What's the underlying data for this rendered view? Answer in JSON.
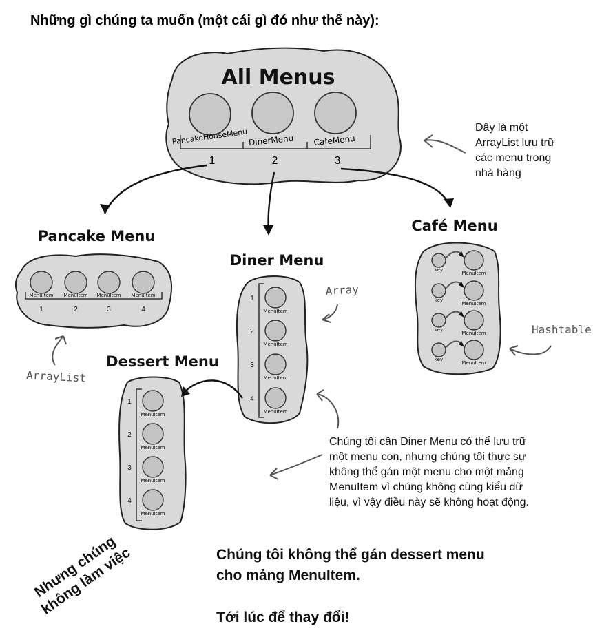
{
  "heading": "Những gì chúng ta muốn (một cái gì đó như thế này):",
  "all_menus": {
    "title": "All Menus",
    "items": [
      "PancakeHouseMenu",
      "DinerMenu",
      "CafeMenu"
    ],
    "indices": [
      "1",
      "2",
      "3"
    ]
  },
  "all_menus_note": [
    "Đây là một",
    "ArrayList lưu trữ",
    "các menu trong",
    "nhà hàng"
  ],
  "pancake": {
    "title": "Pancake Menu",
    "item_label": "MenuItem",
    "indices": [
      "1",
      "2",
      "3",
      "4"
    ]
  },
  "diner": {
    "title": "Diner Menu",
    "item_label": "MenuItem",
    "indices": [
      "1",
      "2",
      "3",
      "4"
    ]
  },
  "cafe": {
    "title": "Café Menu",
    "key_label": "key",
    "item_label": "MenuItem"
  },
  "dessert": {
    "title": "Dessert Menu",
    "item_label": "MenuItem",
    "indices": [
      "1",
      "2",
      "3",
      "4"
    ]
  },
  "labels": {
    "arraylist": "ArrayList",
    "array": "Array",
    "hashtable": "Hashtable"
  },
  "diner_note": [
    "Chúng tôi cần Diner Menu có thể lưu trữ",
    "một menu con, nhưng chúng tôi thực sự",
    "không thể gán một menu cho một mảng",
    "MenuItem vì chúng không cùng kiểu dữ",
    "liệu, vì vậy điều này sẽ không hoạt động."
  ],
  "rotated_note": [
    "Nhưng chúng",
    "không làm việc"
  ],
  "conclusion": [
    "Chúng tôi không thể gán dessert menu",
    "cho mảng MenuItem.",
    "Tới lúc để thay đổi!"
  ]
}
